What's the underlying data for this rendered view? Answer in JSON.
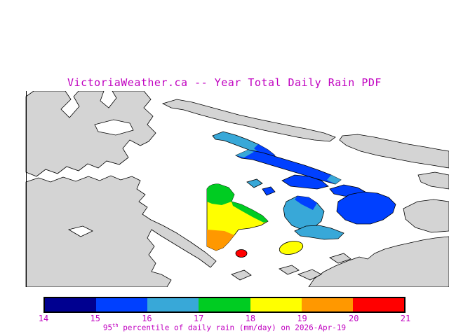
{
  "title": "VictoriaWeather.ca -- Year Total Daily Rain PDF",
  "caption": {
    "prefix": "95",
    "sup": "th",
    "rest": " percentile of daily rain (mm/day) on 2026-Apr-19"
  },
  "colors": {
    "text_accent": "#c000c0",
    "land": "#d4d4d4",
    "water": "#ffffff",
    "outline": "#000000"
  },
  "colorbar": {
    "ticks": [
      "14",
      "15",
      "16",
      "17",
      "18",
      "19",
      "20",
      "21"
    ],
    "units": "mm/day",
    "segments": [
      {
        "range": "14-15",
        "color": "#000090"
      },
      {
        "range": "15-16",
        "color": "#0040ff"
      },
      {
        "range": "16-17",
        "color": "#38a8d8"
      },
      {
        "range": "17-18",
        "color": "#00cc22"
      },
      {
        "range": "18-19",
        "color": "#ffff00"
      },
      {
        "range": "19-20",
        "color": "#ff9800"
      },
      {
        "range": "20-21",
        "color": "#ff0000"
      }
    ]
  },
  "chart_data": {
    "type": "heatmap",
    "title": "VictoriaWeather.ca -- Year Total Daily Rain PDF",
    "colorbar_label": "95th percentile of daily rain (mm/day) on 2026-Apr-19",
    "scale_ticks": [
      14,
      15,
      16,
      17,
      18,
      19,
      20,
      21
    ],
    "units": "mm/day",
    "palette": [
      "#000090",
      "#0040ff",
      "#38a8d8",
      "#00cc22",
      "#ffff00",
      "#ff9800",
      "#ff0000"
    ],
    "map_regions": [
      {
        "area": "upper elongated islands (northeast)",
        "value_range_mm_day": "15-17"
      },
      {
        "area": "large east island",
        "value_range_mm_day": "15-16"
      },
      {
        "area": "central-east island",
        "value_range_mm_day": "16-17"
      },
      {
        "area": "lower elongated island",
        "value_range_mm_day": "16-17"
      },
      {
        "area": "central peninsula north",
        "value_range_mm_day": "17-18"
      },
      {
        "area": "central peninsula middle",
        "value_range_mm_day": "18-19"
      },
      {
        "area": "central peninsula south",
        "value_range_mm_day": "19-20"
      },
      {
        "area": "small southern hotspot",
        "value_range_mm_day": "20-21"
      },
      {
        "area": "small oval island southeast of peninsula",
        "value_range_mm_day": "18-19"
      }
    ]
  }
}
